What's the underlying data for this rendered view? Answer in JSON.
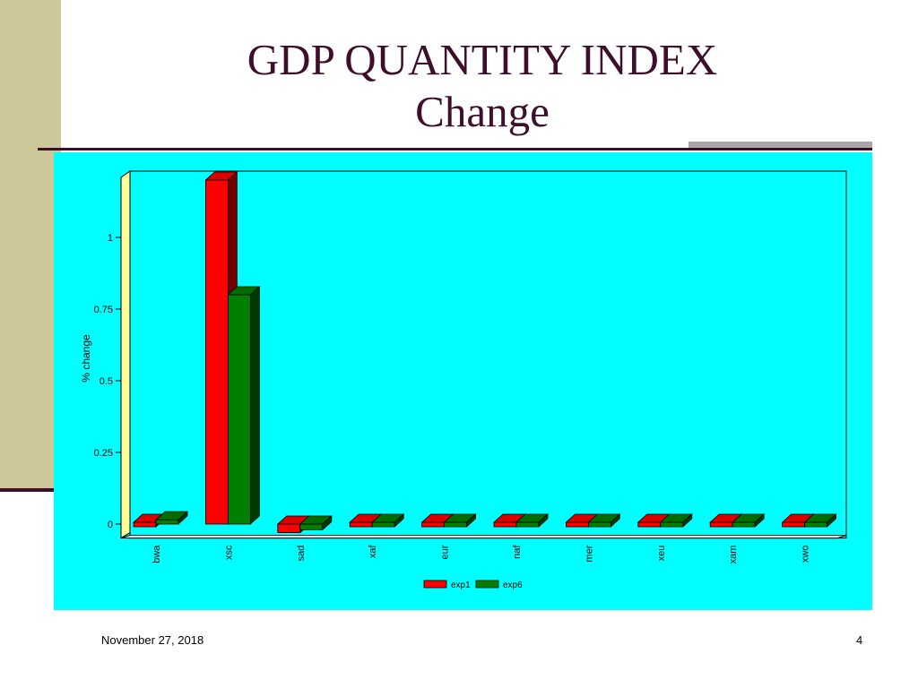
{
  "slide": {
    "title_line1": "GDP QUANTITY INDEX",
    "title_line2": "Change",
    "footer_date": "November 27, 2018",
    "page_number": "4"
  },
  "colors": {
    "panel_bg": "#00ffff",
    "wall_left": "#ffff99",
    "exp1": "#ff0000",
    "exp6": "#008000",
    "title": "#3d0f2a",
    "sidebar": "#cdc89a"
  },
  "chart_data": {
    "type": "bar",
    "title": "",
    "xlabel": "",
    "ylabel": "% change",
    "categories": [
      "bwa",
      "xsc",
      "sad",
      "xaf",
      "eur",
      "naf",
      "mer",
      "xeu",
      "xam",
      "xwo"
    ],
    "series": [
      {
        "name": "exp1",
        "values": [
          0.01,
          1.2,
          -0.03,
          -0.005,
          0.005,
          0.0,
          0.0,
          0.0,
          0.0,
          0.0
        ]
      },
      {
        "name": "exp6",
        "values": [
          0.015,
          0.8,
          -0.02,
          -0.004,
          0.004,
          0.0,
          0.0,
          0.0,
          0.0,
          0.0
        ]
      }
    ],
    "yticks": [
      0,
      0.25,
      0.5,
      0.75,
      1
    ],
    "ytick_labels": [
      "0",
      "0.25",
      "0.5",
      "0.75",
      "1"
    ],
    "ylim": [
      -0.03,
      1.2
    ],
    "grid": false,
    "legend_position": "bottom-center",
    "three_d": true
  }
}
